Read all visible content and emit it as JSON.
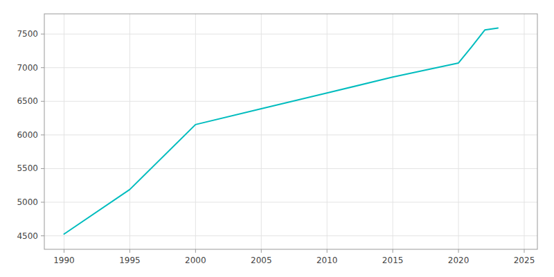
{
  "chart_data": {
    "type": "line",
    "x": [
      1990,
      1995,
      2000,
      2005,
      2010,
      2015,
      2020,
      2021,
      2022,
      2023
    ],
    "values": [
      4526,
      5189,
      6154,
      6390,
      6624,
      6860,
      7070,
      7310,
      7560,
      7590
    ],
    "color": "#00BCBE",
    "xlim": [
      1988.5,
      2026
    ],
    "ylim": [
      4300,
      7800
    ],
    "xticks": [
      1990,
      1995,
      2000,
      2005,
      2010,
      2015,
      2020,
      2025
    ],
    "yticks": [
      4500,
      5000,
      5500,
      6000,
      6500,
      7000,
      7500
    ],
    "grid": true
  }
}
